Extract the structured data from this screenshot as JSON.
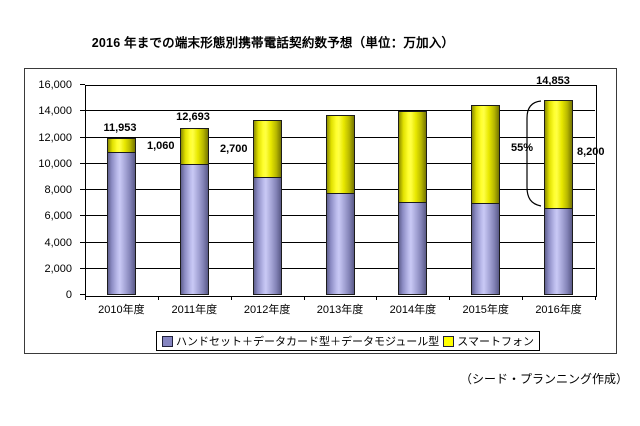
{
  "title": "2016 年までの端末形態別携帯電話契約数予想（単位：万加入）",
  "attribution": "（シード・プランニング作成）",
  "colors": {
    "handset": "#9999cc",
    "smartphone": "#ffff00",
    "gridline": "#000000",
    "frame": "#3a3a3a"
  },
  "chart_data": {
    "type": "bar",
    "stacked": true,
    "title": "2016 年までの端末形態別携帯電話契約数予想（単位：万加入）",
    "categories": [
      "2010年度",
      "2011年度",
      "2012年度",
      "2013年度",
      "2014年度",
      "2015年度",
      "2016年度"
    ],
    "series": [
      {
        "name": "ハンドセット＋データカード型＋データモジュール型",
        "color": "#8484c0",
        "values": [
          10893,
          9993,
          9000,
          7800,
          7100,
          7000,
          6653
        ]
      },
      {
        "name": "スマートフォン",
        "color": "#ffff00",
        "values": [
          1060,
          2700,
          4300,
          5900,
          6950,
          7450,
          8200
        ]
      }
    ],
    "totals": [
      11953,
      12693,
      13300,
      13700,
      14050,
      14450,
      14853
    ],
    "xlabel": "",
    "ylabel": "",
    "ylim": [
      0,
      16000
    ],
    "ytick_step": 2000,
    "grid": true,
    "legend_position": "bottom"
  },
  "annotations": {
    "total_2010": "11,953",
    "smartphone_2010": "1,060",
    "total_2011": "12,693",
    "smartphone_2011": "2,700",
    "total_2016": "14,853",
    "share_2016": "55%",
    "smartphone_2016": "8,200"
  }
}
